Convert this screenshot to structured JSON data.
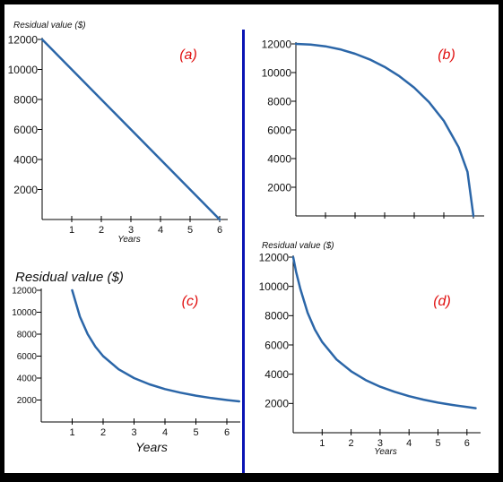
{
  "colors": {
    "frame": "#000000",
    "panel": "#ffffff",
    "divider": "#0a14b4",
    "curve": "#2b66a8",
    "axis": "#000000",
    "panel_label": "#e01010"
  },
  "chart_data": [
    {
      "id": "a",
      "type": "line",
      "panel_label": "(a)",
      "ylabel": "Residual value ($)",
      "xlabel": "Years",
      "y_ticks": [
        2000,
        4000,
        6000,
        8000,
        10000,
        12000
      ],
      "y_tick_labels": [
        "2000",
        "4000",
        "6000",
        "8000",
        "10000",
        "12000"
      ],
      "x_ticks": [
        1,
        2,
        3,
        4,
        5,
        6
      ],
      "x_tick_labels": [
        "1",
        "2",
        "3",
        "4",
        "5",
        "6"
      ],
      "xlim": [
        0,
        6.2
      ],
      "ylim": [
        0,
        12000
      ],
      "x": [
        0,
        6
      ],
      "y": [
        12000,
        0
      ]
    },
    {
      "id": "b",
      "type": "line",
      "panel_label": "(b)",
      "ylabel": "",
      "xlabel": "",
      "y_ticks": [
        2000,
        4000,
        6000,
        8000,
        10000,
        12000
      ],
      "y_tick_labels": [
        "2000",
        "4000",
        "6000",
        "8000",
        "10000",
        "12000"
      ],
      "x_ticks": [
        1,
        2,
        3,
        4,
        5,
        6
      ],
      "x_tick_labels": [],
      "xlim": [
        0,
        6.2
      ],
      "ylim": [
        0,
        12000
      ],
      "x": [
        0,
        0.5,
        1,
        1.5,
        2,
        2.5,
        3,
        3.5,
        4,
        4.5,
        5,
        5.5,
        5.8,
        6
      ],
      "y": [
        12000,
        11958,
        11832,
        11619,
        11314,
        10910,
        10392,
        9743,
        8944,
        7937,
        6633,
        4796,
        3073,
        0
      ]
    },
    {
      "id": "c",
      "type": "line",
      "panel_label": "(c)",
      "ylabel": "Residual value ($)",
      "xlabel": "Years",
      "y_ticks": [
        2000,
        4000,
        6000,
        8000,
        10000,
        12000
      ],
      "y_tick_labels": [
        "2000",
        "4000",
        "6000",
        "8000",
        "10000",
        "12000"
      ],
      "x_ticks": [
        1,
        2,
        3,
        4,
        5,
        6
      ],
      "x_tick_labels": [
        "1",
        "2",
        "3",
        "4",
        "5",
        "6"
      ],
      "xlim": [
        0,
        6.5
      ],
      "ylim": [
        0,
        12000
      ],
      "x": [
        1,
        1.25,
        1.5,
        1.75,
        2,
        2.5,
        3,
        3.5,
        4,
        4.5,
        5,
        5.5,
        6,
        6.4
      ],
      "y": [
        12000,
        9600,
        8000,
        6857,
        6000,
        4800,
        4000,
        3429,
        3000,
        2667,
        2400,
        2182,
        2000,
        1875
      ]
    },
    {
      "id": "d",
      "type": "line",
      "panel_label": "(d)",
      "ylabel": "Residual value ($)",
      "xlabel": "Years",
      "y_ticks": [
        2000,
        4000,
        6000,
        8000,
        10000,
        12000
      ],
      "y_tick_labels": [
        "2000",
        "4000",
        "6000",
        "8000",
        "10000",
        "12000"
      ],
      "x_ticks": [
        1,
        2,
        3,
        4,
        5,
        6
      ],
      "x_tick_labels": [
        "1",
        "2",
        "3",
        "4",
        "5",
        "6"
      ],
      "xlim": [
        0,
        6.3
      ],
      "ylim": [
        0,
        12000
      ],
      "x": [
        0,
        0.1,
        0.25,
        0.5,
        0.75,
        1,
        1.5,
        2,
        2.5,
        3,
        3.5,
        4,
        4.5,
        5,
        5.5,
        6,
        6.3
      ],
      "y": [
        12000,
        11000,
        9800,
        8200,
        7050,
        6200,
        5000,
        4200,
        3600,
        3150,
        2800,
        2500,
        2260,
        2060,
        1900,
        1760,
        1680
      ]
    }
  ]
}
